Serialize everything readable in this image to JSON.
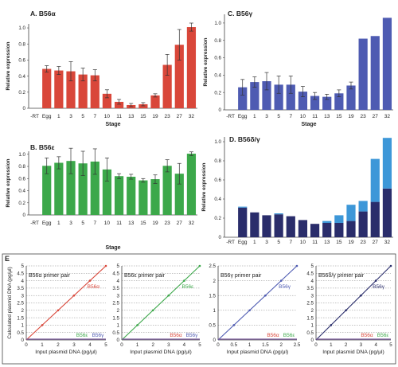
{
  "colors": {
    "red": "#d9473a",
    "blue": "#4e5bb2",
    "green": "#3ca84a",
    "navy": "#2a2d6b",
    "lightblue": "#3d97d8",
    "err": "#333333",
    "grid": "#888888"
  },
  "chart_data": [
    {
      "id": "A",
      "type": "bar",
      "title": "A. B56α",
      "ylabel": "Relative expression",
      "xlabel": "Stage",
      "categories": [
        "-RT",
        "Egg",
        "1",
        "3",
        "5",
        "7",
        "10",
        "11",
        "13",
        "15",
        "19",
        "23",
        "27",
        "32"
      ],
      "values": [
        0,
        0.49,
        0.47,
        0.46,
        0.42,
        0.41,
        0.18,
        0.08,
        0.04,
        0.05,
        0.16,
        0.54,
        0.79,
        1.01
      ],
      "errors": [
        0,
        0.04,
        0.05,
        0.12,
        0.08,
        0.07,
        0.05,
        0.03,
        0.02,
        0.02,
        0.02,
        0.13,
        0.19,
        0.05
      ],
      "yticks": [
        "0",
        "0.2",
        "0.4",
        "0.6",
        "0.8",
        "1.0"
      ],
      "ylim": [
        0,
        1.05
      ]
    },
    {
      "id": "C",
      "type": "bar",
      "title": "C. B56γ",
      "ylabel": "Relative expression",
      "xlabel": "Stage",
      "categories": [
        "-RT",
        "Egg",
        "1",
        "3",
        "5",
        "7",
        "10",
        "11",
        "13",
        "15",
        "19",
        "23",
        "27",
        "32"
      ],
      "values": [
        0,
        0.26,
        0.32,
        0.33,
        0.29,
        0.29,
        0.21,
        0.16,
        0.15,
        0.19,
        0.28,
        0.82,
        0.85,
        1.06
      ],
      "errors": [
        0,
        0.09,
        0.06,
        0.1,
        0.1,
        0.1,
        0.06,
        0.04,
        0.03,
        0.04,
        0.04,
        0.0,
        0.0,
        0.0
      ],
      "yticks": [
        "0",
        "0.2",
        "0.4",
        "0.6",
        "0.8",
        "1.0"
      ],
      "ylim": [
        0,
        1.1
      ]
    },
    {
      "id": "B",
      "type": "bar",
      "title": "B. B56ε",
      "ylabel": "Relative expression",
      "xlabel": "Stage",
      "categories": [
        "-RT",
        "Egg",
        "1",
        "3",
        "5",
        "7",
        "10",
        "11",
        "13",
        "15",
        "19",
        "23",
        "27",
        "32"
      ],
      "values": [
        0,
        0.81,
        0.86,
        0.89,
        0.85,
        0.88,
        0.75,
        0.64,
        0.63,
        0.57,
        0.59,
        0.81,
        0.68,
        1.01
      ],
      "errors": [
        0,
        0.13,
        0.1,
        0.21,
        0.2,
        0.21,
        0.19,
        0.04,
        0.04,
        0.03,
        0.07,
        0.1,
        0.17,
        0.03
      ],
      "yticks": [
        "0",
        "0.2",
        "0.4",
        "0.6",
        "0.8",
        "1.0"
      ],
      "ylim": [
        0,
        1.05
      ]
    },
    {
      "id": "D",
      "type": "bar",
      "title": "D. B56δ/γ",
      "ylabel": "Relative expression",
      "categories": [
        "-RT",
        "Egg",
        "1",
        "3",
        "5",
        "7",
        "10",
        "11",
        "13",
        "15",
        "19",
        "23",
        "27",
        "32"
      ],
      "series": [
        {
          "values": [
            0,
            0.31,
            0.26,
            0.23,
            0.24,
            0.22,
            0.18,
            0.14,
            0.15,
            0.15,
            0.17,
            0.27,
            0.37,
            0.51
          ]
        },
        {
          "values": [
            0,
            0.01,
            0.0,
            0.0,
            0.01,
            0.0,
            0.0,
            0.0,
            0.02,
            0.08,
            0.17,
            0.11,
            0.45,
            0.53
          ]
        }
      ],
      "yticks": [
        "0",
        "0.2",
        "0.4",
        "0.6",
        "0.8",
        "1.0"
      ],
      "ylim": [
        0,
        1.05
      ]
    },
    {
      "id": "E1",
      "type": "line",
      "title": "B56α primer pair",
      "label_main": "B56α",
      "label_others": [
        "B56ε",
        "B56γ"
      ],
      "xlabel": "Input plasmid DNA (pg/μl)",
      "ylabel": "Calculated plasmid DNA (pg/μl)",
      "xticks": [
        "0",
        "1",
        "2",
        "3",
        "4",
        "5"
      ],
      "yticks": [
        "0",
        "0.5",
        "1",
        "1.5",
        "2",
        "2.5",
        "3",
        "3.5",
        "4",
        "4.5",
        "5"
      ],
      "xlim": [
        0,
        5
      ],
      "ylim": [
        0,
        5
      ],
      "main_line": {
        "x": [
          0,
          5
        ],
        "y": [
          0,
          5
        ]
      }
    },
    {
      "id": "E2",
      "type": "line",
      "title": "B56ε primer pair",
      "label_main": "B56ε",
      "label_others": [
        "B56α",
        "B56γ"
      ],
      "xlabel": "Input plasmid DNA (pg/μl)",
      "xticks": [
        "0",
        "1",
        "2",
        "3",
        "4",
        "5"
      ],
      "yticks": [
        "0",
        "0.5",
        "1",
        "1.5",
        "2",
        "2.5",
        "3",
        "3.5",
        "4",
        "4.5",
        "5"
      ],
      "xlim": [
        0,
        5
      ],
      "ylim": [
        0,
        5
      ],
      "main_line": {
        "x": [
          0,
          5
        ],
        "y": [
          0,
          5
        ]
      }
    },
    {
      "id": "E3",
      "type": "line",
      "title": "B56γ primer pair",
      "label_main": "B56γ",
      "label_others": [
        "B56α",
        "B56ε"
      ],
      "xlabel": "Input plasmid DNA (pg/μl)",
      "xticks": [
        "0",
        "0.5",
        "1",
        "1.5",
        "2",
        "2.5"
      ],
      "yticks": [
        "0",
        "0.5",
        "1",
        "1.5",
        "2",
        "2.5"
      ],
      "xlim": [
        0,
        2.5
      ],
      "ylim": [
        0,
        2.5
      ],
      "main_line": {
        "x": [
          0,
          2.5
        ],
        "y": [
          0,
          2.5
        ]
      }
    },
    {
      "id": "E4",
      "type": "line",
      "title": "B56δ/γ primer pair",
      "label_main": "B56γ",
      "label_others": [
        "B56α",
        "B56ε"
      ],
      "xlabel": "Input plasmid DNA (pg/μl)",
      "xticks": [
        "0",
        "1",
        "2",
        "3",
        "4",
        "5"
      ],
      "yticks": [
        "0",
        "0.5",
        "1",
        "1.5",
        "2",
        "2.5",
        "3",
        "3.5",
        "4",
        "4.5",
        "5"
      ],
      "xlim": [
        0,
        5
      ],
      "ylim": [
        0,
        5
      ],
      "main_line": {
        "x": [
          0,
          5
        ],
        "y": [
          0,
          5
        ]
      }
    }
  ],
  "panel_e_label": "E"
}
